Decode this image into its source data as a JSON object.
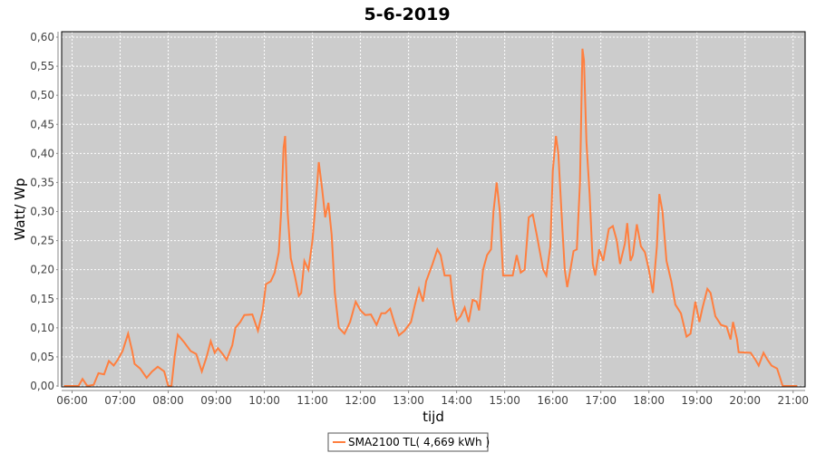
{
  "chart_data": {
    "type": "line",
    "title": "5-6-2019",
    "xlabel": "tijd",
    "ylabel": "Watt/ Wp",
    "ylim": [
      0,
      0.6
    ],
    "xlim": [
      "05:47",
      "21:15"
    ],
    "grid": true,
    "legend_position": "bottom",
    "background_color": "#cccccc",
    "line_color": "#ff7f3f",
    "x_ticks": [
      "06:00",
      "07:00",
      "08:00",
      "09:00",
      "10:00",
      "11:00",
      "12:00",
      "13:00",
      "14:00",
      "15:00",
      "16:00",
      "17:00",
      "18:00",
      "19:00",
      "20:00",
      "21:00"
    ],
    "y_ticks": [
      "0,00",
      "0,05",
      "0,10",
      "0,15",
      "0,20",
      "0,25",
      "0,30",
      "0,35",
      "0,40",
      "0,45",
      "0,50",
      "0,55",
      "0,60"
    ],
    "series": [
      {
        "name": "SMA2100 TL( 4,669 kWh )",
        "points": [
          [
            "05:50",
            0
          ],
          [
            "06:08",
            0
          ],
          [
            "06:13",
            0.012
          ],
          [
            "06:19",
            0
          ],
          [
            "06:27",
            0.002
          ],
          [
            "06:33",
            0.022
          ],
          [
            "06:40",
            0.02
          ],
          [
            "06:46",
            0.043
          ],
          [
            "06:52",
            0.035
          ],
          [
            "06:57",
            0.045
          ],
          [
            "07:03",
            0.06
          ],
          [
            "07:10",
            0.09
          ],
          [
            "07:15",
            0.06
          ],
          [
            "07:18",
            0.038
          ],
          [
            "07:25",
            0.03
          ],
          [
            "07:33",
            0.014
          ],
          [
            "07:40",
            0.025
          ],
          [
            "07:47",
            0.033
          ],
          [
            "07:55",
            0.025
          ],
          [
            "08:00",
            0
          ],
          [
            "08:04",
            0
          ],
          [
            "08:08",
            0.05
          ],
          [
            "08:12",
            0.088
          ],
          [
            "08:20",
            0.075
          ],
          [
            "08:28",
            0.06
          ],
          [
            "08:35",
            0.055
          ],
          [
            "08:42",
            0.025
          ],
          [
            "08:48",
            0.05
          ],
          [
            "08:53",
            0.077
          ],
          [
            "08:58",
            0.057
          ],
          [
            "09:02",
            0.065
          ],
          [
            "09:08",
            0.055
          ],
          [
            "09:13",
            0.045
          ],
          [
            "09:20",
            0.07
          ],
          [
            "09:24",
            0.1
          ],
          [
            "09:30",
            0.11
          ],
          [
            "09:35",
            0.122
          ],
          [
            "09:45",
            0.123
          ],
          [
            "09:52",
            0.095
          ],
          [
            "09:58",
            0.13
          ],
          [
            "10:02",
            0.175
          ],
          [
            "10:08",
            0.18
          ],
          [
            "10:13",
            0.195
          ],
          [
            "10:18",
            0.23
          ],
          [
            "10:21",
            0.3
          ],
          [
            "10:24",
            0.41
          ],
          [
            "10:26",
            0.43
          ],
          [
            "10:29",
            0.3
          ],
          [
            "10:33",
            0.22
          ],
          [
            "10:38",
            0.19
          ],
          [
            "10:43",
            0.155
          ],
          [
            "10:46",
            0.16
          ],
          [
            "10:50",
            0.215
          ],
          [
            "10:55",
            0.2
          ],
          [
            "11:00",
            0.25
          ],
          [
            "11:05",
            0.33
          ],
          [
            "11:08",
            0.385
          ],
          [
            "11:12",
            0.34
          ],
          [
            "11:16",
            0.29
          ],
          [
            "11:20",
            0.315
          ],
          [
            "11:24",
            0.26
          ],
          [
            "11:28",
            0.16
          ],
          [
            "11:33",
            0.1
          ],
          [
            "11:40",
            0.09
          ],
          [
            "11:47",
            0.11
          ],
          [
            "11:54",
            0.145
          ],
          [
            "12:00",
            0.13
          ],
          [
            "12:06",
            0.122
          ],
          [
            "12:13",
            0.123
          ],
          [
            "12:20",
            0.105
          ],
          [
            "12:26",
            0.125
          ],
          [
            "12:31",
            0.125
          ],
          [
            "12:37",
            0.133
          ],
          [
            "12:42",
            0.11
          ],
          [
            "12:48",
            0.087
          ],
          [
            "12:55",
            0.095
          ],
          [
            "13:03",
            0.11
          ],
          [
            "13:08",
            0.14
          ],
          [
            "13:13",
            0.167
          ],
          [
            "13:18",
            0.145
          ],
          [
            "13:22",
            0.18
          ],
          [
            "13:30",
            0.21
          ],
          [
            "13:36",
            0.235
          ],
          [
            "13:40",
            0.225
          ],
          [
            "13:45",
            0.19
          ],
          [
            "13:52",
            0.19
          ],
          [
            "13:55",
            0.15
          ],
          [
            "14:00",
            0.112
          ],
          [
            "14:05",
            0.12
          ],
          [
            "14:10",
            0.135
          ],
          [
            "14:15",
            0.11
          ],
          [
            "14:20",
            0.148
          ],
          [
            "14:25",
            0.145
          ],
          [
            "14:28",
            0.13
          ],
          [
            "14:33",
            0.2
          ],
          [
            "14:38",
            0.225
          ],
          [
            "14:43",
            0.235
          ],
          [
            "14:46",
            0.3
          ],
          [
            "14:50",
            0.35
          ],
          [
            "14:54",
            0.3
          ],
          [
            "14:58",
            0.19
          ],
          [
            "15:03",
            0.19
          ],
          [
            "15:10",
            0.19
          ],
          [
            "15:15",
            0.225
          ],
          [
            "15:20",
            0.195
          ],
          [
            "15:25",
            0.2
          ],
          [
            "15:30",
            0.29
          ],
          [
            "15:35",
            0.295
          ],
          [
            "15:40",
            0.26
          ],
          [
            "15:48",
            0.2
          ],
          [
            "15:52",
            0.19
          ],
          [
            "15:57",
            0.24
          ],
          [
            "16:00",
            0.37
          ],
          [
            "16:04",
            0.43
          ],
          [
            "16:07",
            0.4
          ],
          [
            "16:12",
            0.27
          ],
          [
            "16:15",
            0.2
          ],
          [
            "16:18",
            0.17
          ],
          [
            "16:22",
            0.2
          ],
          [
            "16:26",
            0.232
          ],
          [
            "16:30",
            0.235
          ],
          [
            "16:34",
            0.35
          ],
          [
            "16:37",
            0.58
          ],
          [
            "16:39",
            0.56
          ],
          [
            "16:42",
            0.42
          ],
          [
            "16:46",
            0.33
          ],
          [
            "16:50",
            0.21
          ],
          [
            "16:53",
            0.19
          ],
          [
            "16:58",
            0.235
          ],
          [
            "17:03",
            0.215
          ],
          [
            "17:10",
            0.27
          ],
          [
            "17:15",
            0.275
          ],
          [
            "17:20",
            0.25
          ],
          [
            "17:24",
            0.21
          ],
          [
            "17:30",
            0.245
          ],
          [
            "17:33",
            0.28
          ],
          [
            "17:37",
            0.215
          ],
          [
            "17:40",
            0.225
          ],
          [
            "17:45",
            0.278
          ],
          [
            "17:50",
            0.24
          ],
          [
            "17:55",
            0.23
          ],
          [
            "18:00",
            0.2
          ],
          [
            "18:05",
            0.16
          ],
          [
            "18:10",
            0.24
          ],
          [
            "18:13",
            0.33
          ],
          [
            "18:17",
            0.3
          ],
          [
            "18:22",
            0.215
          ],
          [
            "18:28",
            0.18
          ],
          [
            "18:33",
            0.14
          ],
          [
            "18:40",
            0.125
          ],
          [
            "18:47",
            0.085
          ],
          [
            "18:52",
            0.09
          ],
          [
            "18:58",
            0.145
          ],
          [
            "19:03",
            0.11
          ],
          [
            "19:07",
            0.135
          ],
          [
            "19:13",
            0.167
          ],
          [
            "19:17",
            0.16
          ],
          [
            "19:23",
            0.12
          ],
          [
            "19:30",
            0.105
          ],
          [
            "19:37",
            0.102
          ],
          [
            "19:42",
            0.08
          ],
          [
            "19:45",
            0.11
          ],
          [
            "19:50",
            0.08
          ],
          [
            "19:52",
            0.058
          ],
          [
            "20:07",
            0.057
          ],
          [
            "20:13",
            0.045
          ],
          [
            "20:17",
            0.035
          ],
          [
            "20:23",
            0.057
          ],
          [
            "20:28",
            0.045
          ],
          [
            "20:33",
            0.035
          ],
          [
            "20:40",
            0.03
          ],
          [
            "20:47",
            0
          ],
          [
            "21:05",
            0
          ]
        ]
      }
    ]
  }
}
